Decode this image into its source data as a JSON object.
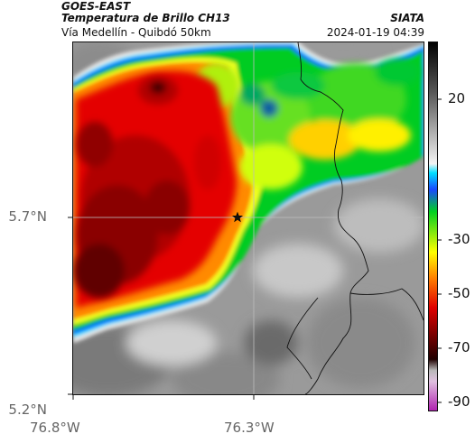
{
  "header": {
    "satellite": "GOES-EAST",
    "product": "Temperatura de Brillo CH13",
    "region": "Vía Medellín - Quibdó 50km",
    "brand": "SIATA",
    "datetime": "2024-01-19 04:39"
  },
  "axes": {
    "lat_ticks": [
      "5.7°N",
      "5.2°N"
    ],
    "lon_ticks": [
      "76.8°W",
      "76.3°W"
    ]
  },
  "colorbar": {
    "ticks": [
      "20",
      "-30",
      "-50",
      "-70",
      "-90"
    ],
    "colors": [
      "#000000",
      "#808080",
      "#ffffff",
      "#00e5ff",
      "#1a49ff",
      "#00d020",
      "#ffff00",
      "#ff8000",
      "#e00000",
      "#700000",
      "#200000",
      "#aaaaaa",
      "#c030c0"
    ]
  },
  "marker": {
    "icon": "star-icon"
  }
}
